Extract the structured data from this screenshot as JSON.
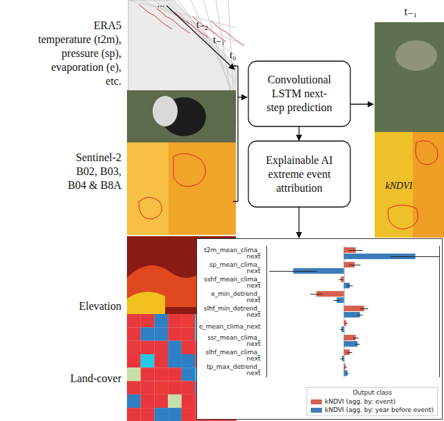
{
  "diagram": {
    "time_axis": {
      "ellipsis": "...",
      "steps": [
        "t₋₂",
        "t₋₁",
        "t₀"
      ]
    },
    "inputs": [
      {
        "label": "ERA5\ntemperature (t2m),\npressure (sp),\nevaporation (e),\netc."
      },
      {
        "label": "Sentinel-2\nB02, B03,\nB04 & B8A"
      },
      {
        "label": "Elevation"
      },
      {
        "label": "Land-cover"
      }
    ],
    "boxes": [
      {
        "label": "Convolutional\nLSTM next-\nstep prediction"
      },
      {
        "label": "Explainable AI\nextreme event\nattribution"
      }
    ],
    "output": {
      "step": "t₋₁",
      "index_label": "kNDVI"
    }
  },
  "chart_data": {
    "type": "bar",
    "orientation": "horizontal",
    "categories": [
      "t2m_mean_clima_\nnext",
      "sp_mean_clima_\nnext",
      "sshf_mean_clima_\nnext",
      "e_min_detrend_\nnext",
      "slhf_min_detrend_\nnext",
      "e_mean_clima_next",
      "ssr_mean_clima_\nnext",
      "slhf_mean_clima_\nnext",
      "tp_max_detrend_\nnext"
    ],
    "series": [
      {
        "name": "kNDVI (agg. by: event)",
        "color": "#d6604d",
        "values": [
          2.0,
          1.8,
          -0.5,
          -4.6,
          3.4,
          0.4,
          2.0,
          1.0,
          0.3
        ],
        "errors": [
          1.2,
          1.0,
          0.3,
          1.0,
          0.7,
          0.2,
          0.5,
          0.4,
          0.2
        ]
      },
      {
        "name": "kNDVI (agg. by: year before event)",
        "color": "#3b7dba",
        "values": [
          12.0,
          -8.5,
          1.0,
          -1.2,
          2.7,
          -0.4,
          2.3,
          -0.3,
          0.6
        ],
        "errors": [
          4.2,
          4.0,
          0.5,
          0.5,
          0.5,
          0.2,
          0.4,
          0.3,
          0.2
        ]
      }
    ],
    "legend_title": "Output class",
    "legend": "lower right",
    "xlim": [
      -13,
      16
    ],
    "xticks": [],
    "tick_labels": "y",
    "grid": false
  }
}
